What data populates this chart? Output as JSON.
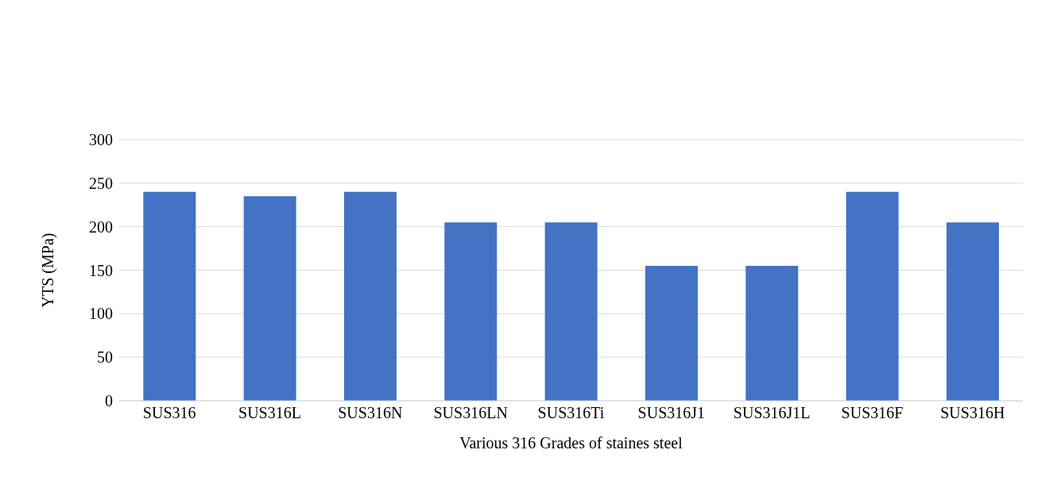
{
  "chart_data": {
    "type": "bar",
    "xlabel": "Various 316 Grades of staines steel",
    "ylabel": "YTS  (MPa)",
    "categories": [
      "SUS316",
      "SUS316L",
      "SUS316N",
      "SUS316LN",
      "SUS316Ti",
      "SUS316J1",
      "SUS316J1L",
      "SUS316F",
      "SUS316H"
    ],
    "values": [
      240,
      235,
      240,
      205,
      205,
      155,
      155,
      240,
      205
    ],
    "color": "#4472c4",
    "ylim": [
      0,
      300
    ],
    "yticks": [
      0,
      50,
      100,
      150,
      200,
      250,
      300
    ],
    "grid": "y"
  }
}
